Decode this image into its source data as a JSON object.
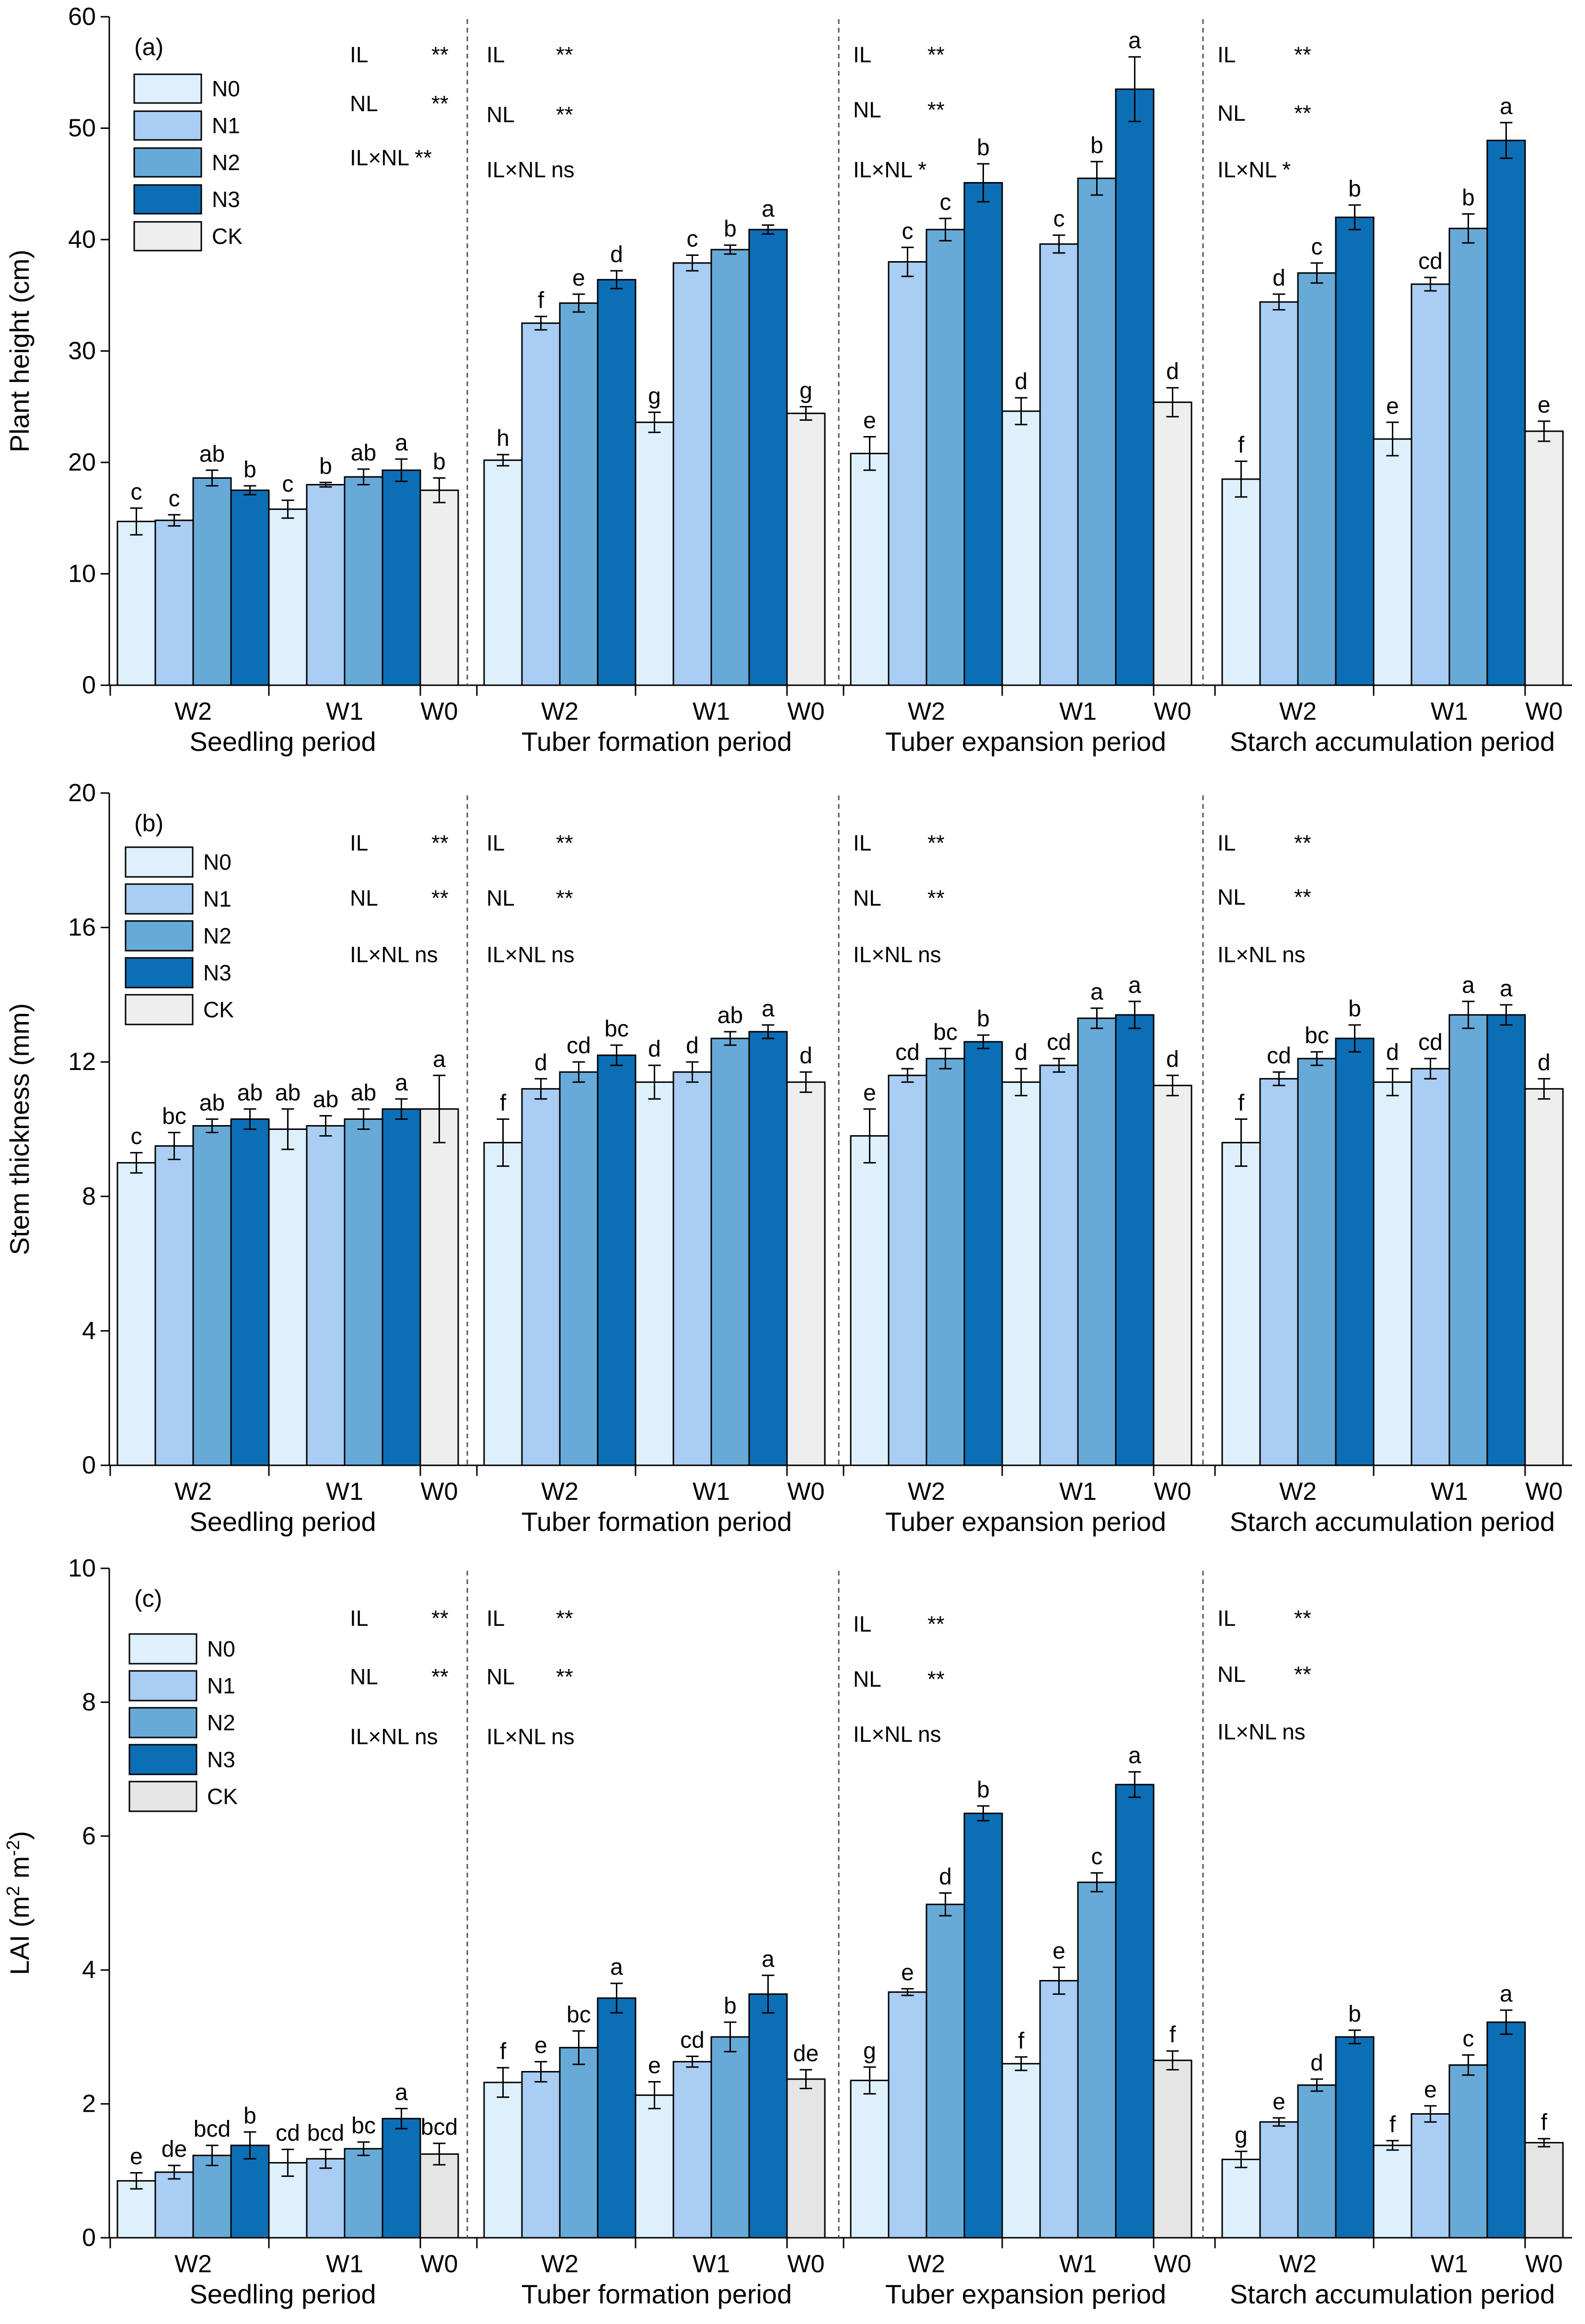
{
  "colors": {
    "N0": "#ddf0fb",
    "N1": "#a9cdf3",
    "N2": "#67aad8",
    "N3": "#0c6eb5",
    "CK": "#eeeeee",
    "CK_c": "#e5e5e5"
  },
  "legend": [
    "N0",
    "N1",
    "N2",
    "N3",
    "CK"
  ],
  "period_labels": [
    "Seedling period",
    "Tuber formation period",
    "Tuber expansion period",
    "Starch accumulation period"
  ],
  "group_labels": [
    "W2",
    "W1",
    "W0"
  ],
  "chart_data": [
    {
      "type": "bar",
      "panel": "(a)",
      "ylabel": "Plant height (cm)",
      "ylim": [
        0,
        60
      ],
      "yticks": [
        0,
        10,
        20,
        30,
        40,
        50,
        60
      ],
      "periods": [
        {
          "name": "Seedling period",
          "stats": [
            [
              "IL",
              "**"
            ],
            [
              "NL",
              "**"
            ],
            [
              "IL×NL",
              "**"
            ]
          ],
          "W2": {
            "values": [
              14.7,
              14.8,
              18.6,
              17.5
            ],
            "errors": [
              1.2,
              0.5,
              0.7,
              0.4
            ],
            "letters": [
              "c",
              "c",
              "ab",
              "b"
            ]
          },
          "W1": {
            "values": [
              15.8,
              18.0,
              18.7,
              19.3
            ],
            "errors": [
              0.8,
              0.2,
              0.7,
              1.0
            ],
            "letters": [
              "c",
              "b",
              "ab",
              "a"
            ]
          },
          "W0": {
            "value": 17.5,
            "error": 1.1,
            "letter": "b"
          }
        },
        {
          "name": "Tuber formation period",
          "stats": [
            [
              "IL",
              "**"
            ],
            [
              "NL",
              "**"
            ],
            [
              "IL×NL",
              "ns"
            ]
          ],
          "W2": {
            "values": [
              20.2,
              32.5,
              34.3,
              36.4
            ],
            "errors": [
              0.5,
              0.6,
              0.8,
              0.8
            ],
            "letters": [
              "h",
              "f",
              "e",
              "d"
            ]
          },
          "W1": {
            "values": [
              37.9,
              39.1,
              40.9
            ],
            "errors": [
              0.7,
              0.4,
              0.4
            ],
            "letters": [
              "c",
              "b",
              "a"
            ],
            "n0": {
              "value": 23.6,
              "error": 0.9,
              "letter": "g"
            }
          },
          "W0": {
            "value": 24.4,
            "error": 0.6,
            "letter": "g"
          }
        },
        {
          "name": "Tuber expansion period",
          "stats": [
            [
              "IL",
              "**"
            ],
            [
              "NL",
              "**"
            ],
            [
              "IL×NL",
              "*"
            ]
          ],
          "W2": {
            "values": [
              20.8,
              38.0,
              40.9,
              45.1
            ],
            "errors": [
              1.5,
              1.3,
              1.0,
              1.7
            ],
            "letters": [
              "e",
              "c",
              "c",
              "b"
            ]
          },
          "W1": {
            "values": [
              39.6,
              45.5,
              53.5
            ],
            "errors": [
              0.8,
              1.5,
              2.9
            ],
            "letters": [
              "c",
              "b",
              "a"
            ],
            "n0": {
              "value": 24.6,
              "error": 1.2,
              "letter": "d"
            }
          },
          "W0": {
            "value": 25.4,
            "error": 1.3,
            "letter": "d"
          }
        },
        {
          "name": "Starch accumulation period",
          "stats": [
            [
              "IL",
              "**"
            ],
            [
              "NL",
              "**"
            ],
            [
              "IL×NL",
              "*"
            ]
          ],
          "W2": {
            "values": [
              18.5,
              34.4,
              37.0,
              42.0
            ],
            "errors": [
              1.6,
              0.7,
              0.9,
              1.1
            ],
            "letters": [
              "f",
              "d",
              "c",
              "b"
            ]
          },
          "W1": {
            "values": [
              36.0,
              41.0,
              48.9
            ],
            "errors": [
              0.6,
              1.3,
              1.6
            ],
            "letters": [
              "cd",
              "b",
              "a"
            ],
            "n0": {
              "value": 22.1,
              "error": 1.5,
              "letter": "e"
            }
          },
          "W0": {
            "value": 22.8,
            "error": 0.9,
            "letter": "e"
          }
        }
      ]
    },
    {
      "type": "bar",
      "panel": "(b)",
      "ylabel": "Stem thickness (mm)",
      "ylim": [
        0,
        20
      ],
      "yticks": [
        0,
        4,
        8,
        12,
        16,
        20
      ],
      "periods": [
        {
          "name": "Seedling period",
          "stats": [
            [
              "IL",
              "**"
            ],
            [
              "NL",
              "**"
            ],
            [
              "IL×NL",
              "ns"
            ]
          ],
          "W2": {
            "values": [
              9.0,
              9.5,
              10.1,
              10.3
            ],
            "errors": [
              0.3,
              0.4,
              0.2,
              0.3
            ],
            "letters": [
              "c",
              "bc",
              "ab",
              "ab"
            ]
          },
          "W1": {
            "values": [
              10.1,
              10.3,
              10.6
            ],
            "errors": [
              0.3,
              0.3,
              0.3
            ],
            "letters": [
              "ab",
              "ab",
              "a"
            ],
            "n0": {
              "value": 10.0,
              "error": 0.6,
              "letter": "ab"
            }
          },
          "W0": {
            "value": 10.6,
            "error": 1.0,
            "letter": "a"
          }
        },
        {
          "name": "Tuber formation period",
          "stats": [
            [
              "IL",
              "**"
            ],
            [
              "NL",
              "**"
            ],
            [
              "IL×NL",
              "ns"
            ]
          ],
          "W2": {
            "values": [
              9.6,
              11.2,
              11.7,
              12.2
            ],
            "errors": [
              0.7,
              0.3,
              0.3,
              0.3
            ],
            "letters": [
              "f",
              "d",
              "cd",
              "bc"
            ]
          },
          "W1": {
            "values": [
              11.7,
              12.7,
              12.9
            ],
            "errors": [
              0.3,
              0.2,
              0.2
            ],
            "letters": [
              "d",
              "ab",
              "a"
            ],
            "n0": {
              "value": 11.4,
              "error": 0.5,
              "letter": "d"
            }
          },
          "W0": {
            "value": 11.4,
            "error": 0.3,
            "letter": "d"
          }
        },
        {
          "name": "Tuber expansion period",
          "stats": [
            [
              "IL",
              "**"
            ],
            [
              "NL",
              "**"
            ],
            [
              "IL×NL",
              "ns"
            ]
          ],
          "W2": {
            "values": [
              9.8,
              11.6,
              12.1,
              12.6
            ],
            "errors": [
              0.8,
              0.2,
              0.3,
              0.2
            ],
            "letters": [
              "e",
              "cd",
              "bc",
              "b"
            ]
          },
          "W1": {
            "values": [
              11.9,
              13.3,
              13.4
            ],
            "errors": [
              0.2,
              0.3,
              0.4
            ],
            "letters": [
              "cd",
              "a",
              "a"
            ],
            "n0": {
              "value": 11.4,
              "error": 0.4,
              "letter": "d"
            }
          },
          "W0": {
            "value": 11.3,
            "error": 0.3,
            "letter": "d"
          }
        },
        {
          "name": "Starch accumulation period",
          "stats": [
            [
              "IL",
              "**"
            ],
            [
              "NL",
              "**"
            ],
            [
              "IL×NL",
              "ns"
            ]
          ],
          "W2": {
            "values": [
              9.6,
              11.5,
              12.1,
              12.7
            ],
            "errors": [
              0.7,
              0.2,
              0.2,
              0.4
            ],
            "letters": [
              "f",
              "cd",
              "bc",
              "b"
            ]
          },
          "W1": {
            "values": [
              11.8,
              13.4,
              13.4
            ],
            "errors": [
              0.3,
              0.4,
              0.3
            ],
            "letters": [
              "cd",
              "a",
              "a"
            ],
            "n0": {
              "value": 11.4,
              "error": 0.4,
              "letter": "d"
            }
          },
          "W0": {
            "value": 11.2,
            "error": 0.3,
            "letter": "d"
          }
        }
      ]
    },
    {
      "type": "bar",
      "panel": "(c)",
      "ylabel": "LAI (m² m⁻²)",
      "ylabel_main": "LAI (m",
      "ylabel_sup1": "2",
      "ylabel_mid": " m",
      "ylabel_sup2": "-2",
      "ylabel_end": ")",
      "ylim": [
        0,
        10
      ],
      "yticks": [
        0,
        2,
        4,
        6,
        8,
        10
      ],
      "periods": [
        {
          "name": "Seedling period",
          "stats": [
            [
              "IL",
              "**"
            ],
            [
              "NL",
              "**"
            ],
            [
              "IL×NL",
              "ns"
            ]
          ],
          "W2": {
            "values": [
              0.85,
              0.98,
              1.23,
              1.38
            ],
            "errors": [
              0.12,
              0.1,
              0.15,
              0.2
            ],
            "letters": [
              "e",
              "de",
              "bcd",
              "b"
            ]
          },
          "W1": {
            "values": [
              1.18,
              1.33,
              1.78
            ],
            "errors": [
              0.14,
              0.1,
              0.15
            ],
            "letters": [
              "bcd",
              "bc",
              "a"
            ],
            "n0": {
              "value": 1.12,
              "error": 0.2,
              "letter": "cd"
            }
          },
          "W0": {
            "value": 1.25,
            "error": 0.16,
            "letter": "bcd"
          }
        },
        {
          "name": "Tuber formation period",
          "stats": [
            [
              "IL",
              "**"
            ],
            [
              "NL",
              "**"
            ],
            [
              "IL×NL",
              "ns"
            ]
          ],
          "W2": {
            "values": [
              2.32,
              2.48,
              2.84,
              3.58
            ],
            "errors": [
              0.22,
              0.15,
              0.25,
              0.22
            ],
            "letters": [
              "f",
              "e",
              "bc",
              "a"
            ]
          },
          "W1": {
            "values": [
              2.63,
              3.0,
              3.64
            ],
            "errors": [
              0.08,
              0.22,
              0.28
            ],
            "letters": [
              "cd",
              "b",
              "a"
            ],
            "n0": {
              "value": 2.13,
              "error": 0.2,
              "letter": "e"
            }
          },
          "W0": {
            "value": 2.37,
            "error": 0.14,
            "letter": "de"
          }
        },
        {
          "name": "Tuber expansion period",
          "stats": [
            [
              "IL",
              "**"
            ],
            [
              "NL",
              "**"
            ],
            [
              "IL×NL",
              "ns"
            ]
          ],
          "W2": {
            "values": [
              2.35,
              3.67,
              4.98,
              6.34
            ],
            "errors": [
              0.2,
              0.05,
              0.17,
              0.11
            ],
            "letters": [
              "g",
              "e",
              "d",
              "b"
            ]
          },
          "W1": {
            "values": [
              3.84,
              5.31,
              6.77
            ],
            "errors": [
              0.2,
              0.14,
              0.19
            ],
            "letters": [
              "e",
              "c",
              "a"
            ],
            "n0": {
              "value": 2.6,
              "error": 0.1,
              "letter": "f"
            }
          },
          "W0": {
            "value": 2.65,
            "error": 0.14,
            "letter": "f"
          }
        },
        {
          "name": "Starch accumulation period",
          "stats": [
            [
              "IL",
              "**"
            ],
            [
              "NL",
              "**"
            ],
            [
              "IL×NL",
              "ns"
            ]
          ],
          "W2": {
            "values": [
              1.17,
              1.73,
              2.28,
              3.0
            ],
            "errors": [
              0.12,
              0.06,
              0.09,
              0.1
            ],
            "letters": [
              "g",
              "e",
              "d",
              "b"
            ]
          },
          "W1": {
            "values": [
              1.85,
              2.58,
              3.22
            ],
            "errors": [
              0.12,
              0.15,
              0.18
            ],
            "letters": [
              "e",
              "c",
              "a"
            ],
            "n0": {
              "value": 1.38,
              "error": 0.07,
              "letter": "f"
            }
          },
          "W0": {
            "value": 1.42,
            "error": 0.06,
            "letter": "f"
          }
        }
      ]
    }
  ]
}
